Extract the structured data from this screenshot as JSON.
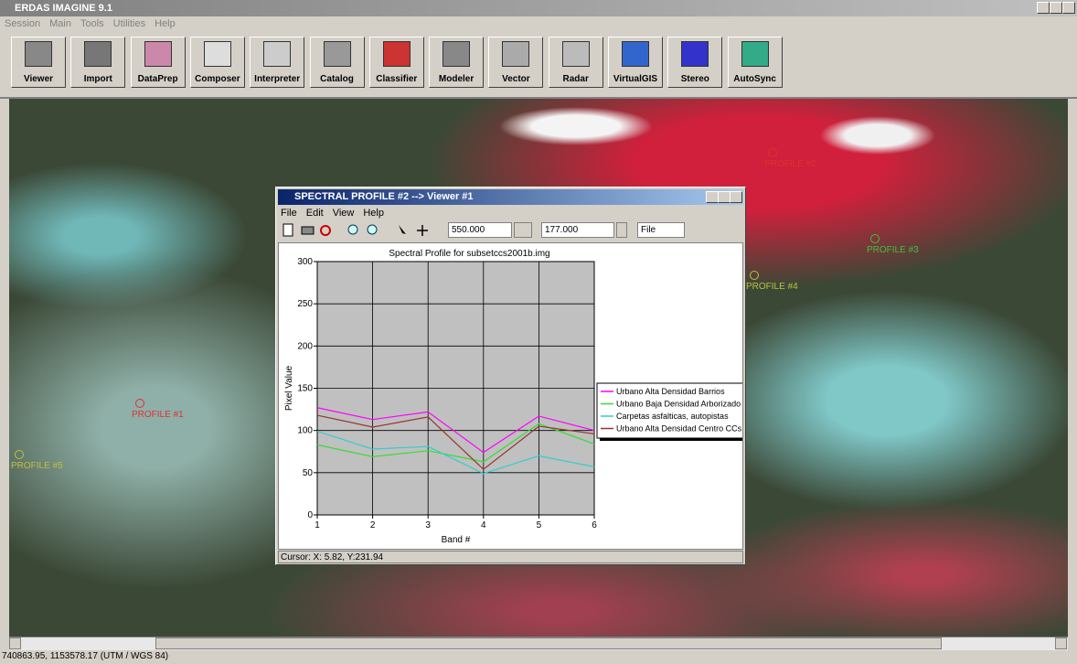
{
  "app": {
    "title": "ERDAS IMAGINE 9.1",
    "menu": [
      "Session",
      "Main",
      "Tools",
      "Utilities",
      "Help"
    ],
    "toolbar": [
      "Viewer",
      "Import",
      "DataPrep",
      "Composer",
      "Interpreter",
      "Catalog",
      "Classifier",
      "Modeler",
      "Vector",
      "Radar",
      "VirtualGIS",
      "Stereo",
      "AutoSync"
    ]
  },
  "map_labels": [
    "PROFILE #1",
    "PROFILE #2",
    "PROFILE #3",
    "PROFILE #4",
    "PROFILE #5"
  ],
  "dialog": {
    "title": "SPECTRAL PROFILE #2 --> Viewer #1",
    "menu": [
      "File",
      "Edit",
      "View",
      "Help"
    ],
    "x_field": "550.000",
    "y_field": "177.000",
    "output": "File",
    "status": "Cursor: X: 5.82, Y:231.94"
  },
  "chart_data": {
    "type": "line",
    "title": "Spectral Profile for subsetccs2001b.img",
    "x_label": "Band #",
    "y_label": "Pixel Value",
    "x": [
      1,
      2,
      3,
      4,
      5,
      6
    ],
    "xlim": [
      1,
      6
    ],
    "xticks": [
      1,
      2,
      3,
      4,
      5,
      6
    ],
    "ylim": [
      0,
      300
    ],
    "yticks": [
      0,
      50,
      100,
      150,
      200,
      250,
      300
    ],
    "grid": true,
    "series": [
      {
        "name": "Urbano Alta Densidad Barrios",
        "color": "#ff00ff",
        "values": [
          127,
          113,
          122,
          74,
          117,
          100
        ]
      },
      {
        "name": "Urbano Baja Densidad Arborizado",
        "color": "#33dd33",
        "values": [
          83,
          69,
          76,
          63,
          108,
          84
        ]
      },
      {
        "name": "Carpetas asfalticas, autopistas",
        "color": "#33cccc",
        "values": [
          99,
          78,
          81,
          49,
          70,
          57
        ]
      },
      {
        "name": "Urbano Alta Densidad Centro CCs",
        "color": "#993333",
        "values": [
          118,
          104,
          116,
          54,
          105,
          96
        ]
      }
    ]
  },
  "status_bar": "740863.95, 1153578.17  (UTM / WGS 84)"
}
